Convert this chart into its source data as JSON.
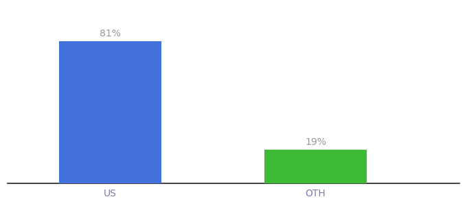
{
  "categories": [
    "US",
    "OTH"
  ],
  "values": [
    81,
    19
  ],
  "bar_colors": [
    "#4472dd",
    "#3dbb35"
  ],
  "labels": [
    "81%",
    "19%"
  ],
  "background_color": "#ffffff",
  "bar_width": 0.5,
  "ylim": [
    0,
    100
  ],
  "label_fontsize": 10,
  "tick_fontsize": 10,
  "tick_color": "#7b7bb0",
  "label_color": "#999999",
  "spine_color": "#222222"
}
